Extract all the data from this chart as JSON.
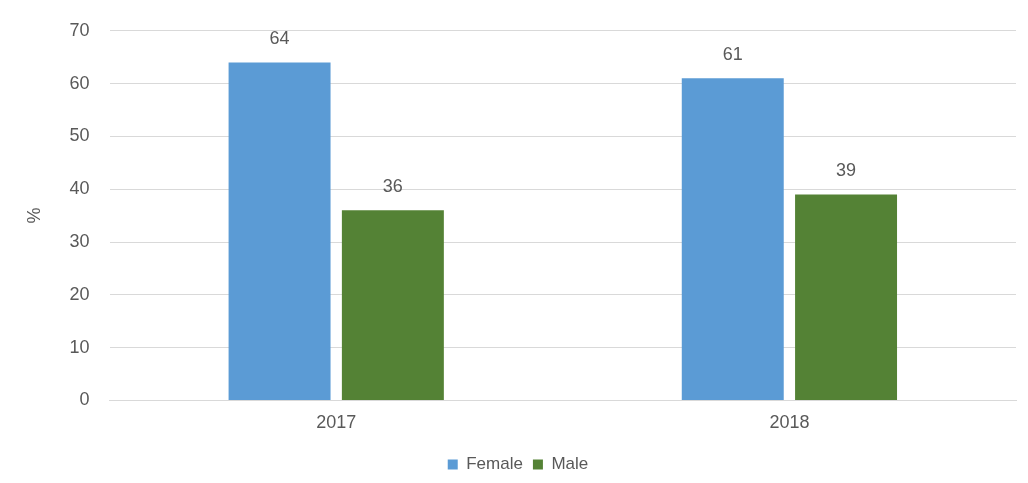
{
  "chart_data": {
    "type": "bar",
    "ylabel": "%",
    "categories": [
      "2017",
      "2018"
    ],
    "series": [
      {
        "name": "Female",
        "color": "#5b9bd5",
        "values": [
          64,
          61
        ]
      },
      {
        "name": "Male",
        "color": "#548235",
        "values": [
          36,
          39
        ]
      }
    ],
    "ylim": [
      0,
      70
    ],
    "yticks": [
      0,
      10,
      20,
      30,
      40,
      50,
      60,
      70
    ],
    "grid": "y",
    "legend": "bottom",
    "data_labels": true
  }
}
